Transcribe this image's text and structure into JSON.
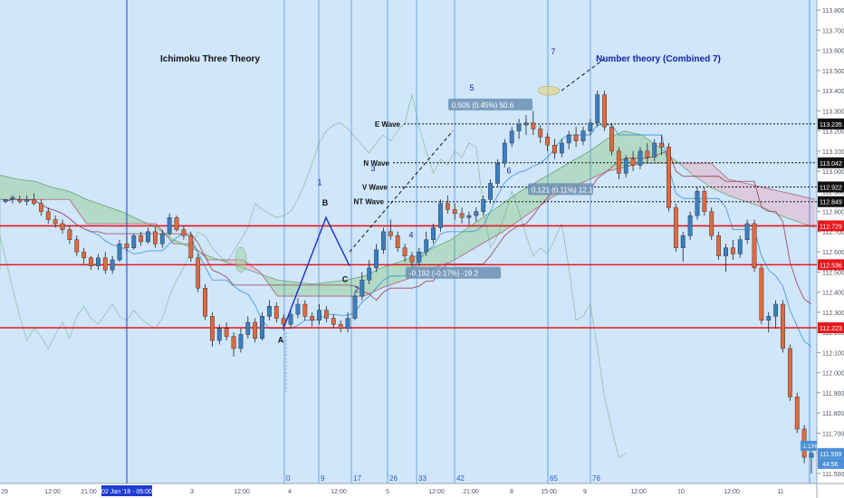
{
  "chart_data": {
    "type": "candlestick",
    "title": "Ichimoku Three Theory",
    "annotation_number_theory": "Number theory (Combined 7)",
    "y_axis": {
      "min": 111.45,
      "max": 113.85,
      "ticks": [
        113.8,
        113.7,
        113.6,
        113.5,
        113.4,
        113.3,
        113.2,
        113.1,
        113.0,
        112.9,
        112.8,
        112.7,
        112.6,
        112.5,
        112.4,
        112.3,
        112.2,
        112.1,
        112.0,
        111.9,
        111.8,
        111.7,
        111.6,
        111.5
      ],
      "tick_labels": [
        "113.800",
        "113.700",
        "113.600",
        "113.500",
        "113.400",
        "113.300",
        "113.200",
        "113.100",
        "113.000",
        "112.900",
        "112.800",
        "112.700",
        "112.600",
        "112.500",
        "112.400",
        "112.300",
        "112.200",
        "112.100",
        "112.000",
        "111.900",
        "111.800",
        "111.700",
        "111.600",
        "111.500"
      ]
    },
    "x_axis": {
      "labels": [
        "29",
        "12:00",
        "21:00",
        "02 Jan '18 - 05:00",
        "3",
        "12:00",
        "4",
        "12:00",
        "5",
        "12:00",
        "21:00",
        "8",
        "15:00",
        "9",
        "12:00",
        "10",
        "12:00",
        "11"
      ],
      "highlighted_label": "02 Jan '18 - 05:00"
    },
    "horizontal_levels": [
      {
        "value": 112.729,
        "label": "112.729",
        "color": "#e8161c"
      },
      {
        "value": 112.536,
        "label": "112.536",
        "color": "#e8161c"
      },
      {
        "value": 112.223,
        "label": "112.223",
        "color": "#e8161c"
      }
    ],
    "wave_levels": [
      {
        "name": "E Wave",
        "value": 113.235,
        "label": "113.235"
      },
      {
        "name": "N Wave",
        "value": 113.042,
        "label": "113.042"
      },
      {
        "name": "V Wave",
        "value": 112.922,
        "label": "112.922"
      },
      {
        "name": "NT Wave",
        "value": 112.849,
        "label": "112.849"
      }
    ],
    "right_price_labels": [
      {
        "value": 111.599,
        "label": "111.599",
        "time": "44:56",
        "change": "-1.13%"
      }
    ],
    "time_cycle_counts": [
      "0",
      "9",
      "17",
      "26",
      "33",
      "42",
      "65",
      "76"
    ],
    "wave_points": [
      "A",
      "B",
      "C",
      "1",
      "2",
      "3",
      "4",
      "5",
      "6",
      "7"
    ],
    "measurements": [
      {
        "text": "0.505 (0.45%) 50.6"
      },
      {
        "text": "0.121 (0.11%) 12.1"
      },
      {
        "text": "-0.192 (-0.17%) -19.2"
      }
    ],
    "candles": [
      [
        112.85,
        112.86,
        112.84,
        112.86
      ],
      [
        112.86,
        112.88,
        112.84,
        112.87
      ],
      [
        112.86,
        112.88,
        112.84,
        112.85
      ],
      [
        112.85,
        112.88,
        112.83,
        112.86
      ],
      [
        112.86,
        112.89,
        112.83,
        112.84
      ],
      [
        112.84,
        112.86,
        112.78,
        112.8
      ],
      [
        112.8,
        112.82,
        112.74,
        112.76
      ],
      [
        112.76,
        112.78,
        112.72,
        112.74
      ],
      [
        112.74,
        112.76,
        112.69,
        112.71
      ],
      [
        112.71,
        112.73,
        112.64,
        112.66
      ],
      [
        112.66,
        112.68,
        112.58,
        112.6
      ],
      [
        112.6,
        112.62,
        112.54,
        112.57
      ],
      [
        112.57,
        112.58,
        112.51,
        112.53
      ],
      [
        112.53,
        112.59,
        112.51,
        112.57
      ],
      [
        112.57,
        112.6,
        112.49,
        112.51
      ],
      [
        112.51,
        112.58,
        112.49,
        112.56
      ],
      [
        112.56,
        112.66,
        112.55,
        112.64
      ],
      [
        112.64,
        112.68,
        112.6,
        112.62
      ],
      [
        112.62,
        112.69,
        112.61,
        112.68
      ],
      [
        112.68,
        112.7,
        112.63,
        112.65
      ],
      [
        112.65,
        112.72,
        112.64,
        112.7
      ],
      [
        112.7,
        112.72,
        112.62,
        112.64
      ],
      [
        112.64,
        112.71,
        112.62,
        112.69
      ],
      [
        112.69,
        112.79,
        112.68,
        112.77
      ],
      [
        112.77,
        112.78,
        112.7,
        112.71
      ],
      [
        112.71,
        112.73,
        112.66,
        112.68
      ],
      [
        112.68,
        112.7,
        112.55,
        112.57
      ],
      [
        112.57,
        112.59,
        112.4,
        112.42
      ],
      [
        112.42,
        112.44,
        112.26,
        112.28
      ],
      [
        112.28,
        112.3,
        112.13,
        112.16
      ],
      [
        112.16,
        112.24,
        112.14,
        112.22
      ],
      [
        112.22,
        112.25,
        112.16,
        112.18
      ],
      [
        112.18,
        112.2,
        112.08,
        112.12
      ],
      [
        112.12,
        112.22,
        112.1,
        112.19
      ],
      [
        112.19,
        112.28,
        112.17,
        112.25
      ],
      [
        112.25,
        112.27,
        112.15,
        112.17
      ],
      [
        112.17,
        112.3,
        112.16,
        112.28
      ],
      [
        112.28,
        112.36,
        112.26,
        112.33
      ],
      [
        112.33,
        112.35,
        112.25,
        112.27
      ],
      [
        112.27,
        112.29,
        112.21,
        112.24
      ],
      [
        112.24,
        112.32,
        112.22,
        112.29
      ],
      [
        112.29,
        112.37,
        112.27,
        112.34
      ],
      [
        112.34,
        112.36,
        112.26,
        112.28
      ],
      [
        112.28,
        112.3,
        112.23,
        112.26
      ],
      [
        112.26,
        112.34,
        112.24,
        112.31
      ],
      [
        112.31,
        112.33,
        112.25,
        112.27
      ],
      [
        112.27,
        112.29,
        112.22,
        112.24
      ],
      [
        112.24,
        112.26,
        112.2,
        112.22
      ],
      [
        112.22,
        112.3,
        112.2,
        112.27
      ],
      [
        112.27,
        112.4,
        112.26,
        112.38
      ],
      [
        112.38,
        112.5,
        112.36,
        112.46
      ],
      [
        112.46,
        112.56,
        112.44,
        112.52
      ],
      [
        112.52,
        112.64,
        112.5,
        112.61
      ],
      [
        112.61,
        112.72,
        112.59,
        112.7
      ],
      [
        112.7,
        112.76,
        112.66,
        112.68
      ],
      [
        112.68,
        112.7,
        112.6,
        112.62
      ],
      [
        112.62,
        112.64,
        112.55,
        112.58
      ],
      [
        112.58,
        112.6,
        112.52,
        112.55
      ],
      [
        112.55,
        112.62,
        112.53,
        112.6
      ],
      [
        112.6,
        112.7,
        112.58,
        112.66
      ],
      [
        112.66,
        112.74,
        112.64,
        112.72
      ],
      [
        112.72,
        112.86,
        112.7,
        112.84
      ],
      [
        112.84,
        112.88,
        112.79,
        112.81
      ],
      [
        112.81,
        112.84,
        112.76,
        112.79
      ],
      [
        112.79,
        112.82,
        112.74,
        112.77
      ],
      [
        112.77,
        112.8,
        112.73,
        112.78
      ],
      [
        112.78,
        112.82,
        112.75,
        112.8
      ],
      [
        112.8,
        112.88,
        112.78,
        112.86
      ],
      [
        112.86,
        112.96,
        112.84,
        112.94
      ],
      [
        112.94,
        113.06,
        112.92,
        113.04
      ],
      [
        113.04,
        113.16,
        113.02,
        113.14
      ],
      [
        113.14,
        113.22,
        113.12,
        113.2
      ],
      [
        113.2,
        113.26,
        113.16,
        113.23
      ],
      [
        113.23,
        113.28,
        113.18,
        113.24
      ],
      [
        113.24,
        113.3,
        113.18,
        113.21
      ],
      [
        113.21,
        113.23,
        113.14,
        113.17
      ],
      [
        113.17,
        113.19,
        113.1,
        113.13
      ],
      [
        113.13,
        113.16,
        113.06,
        113.09
      ],
      [
        113.09,
        113.16,
        113.07,
        113.14
      ],
      [
        113.14,
        113.2,
        113.11,
        113.18
      ],
      [
        113.18,
        113.22,
        113.12,
        113.15
      ],
      [
        113.15,
        113.22,
        113.13,
        113.2
      ],
      [
        113.2,
        113.26,
        113.18,
        113.24
      ],
      [
        113.24,
        113.4,
        113.22,
        113.38
      ],
      [
        113.38,
        113.4,
        113.2,
        113.22
      ],
      [
        113.22,
        113.24,
        113.08,
        113.1
      ],
      [
        113.1,
        113.12,
        112.96,
        112.99
      ],
      [
        112.99,
        113.08,
        112.97,
        113.06
      ],
      [
        113.06,
        113.1,
        113.0,
        113.03
      ],
      [
        113.03,
        113.12,
        113.01,
        113.1
      ],
      [
        113.1,
        113.14,
        113.04,
        113.07
      ],
      [
        113.07,
        113.16,
        113.05,
        113.14
      ],
      [
        113.14,
        113.18,
        113.08,
        113.12
      ],
      [
        113.12,
        113.14,
        112.8,
        112.82
      ],
      [
        112.82,
        112.84,
        112.6,
        112.62
      ],
      [
        112.62,
        112.7,
        112.55,
        112.68
      ],
      [
        112.68,
        112.8,
        112.66,
        112.78
      ],
      [
        112.78,
        112.92,
        112.76,
        112.9
      ],
      [
        112.9,
        112.92,
        112.78,
        112.8
      ],
      [
        112.8,
        112.82,
        112.66,
        112.68
      ],
      [
        112.68,
        112.7,
        112.56,
        112.58
      ],
      [
        112.58,
        112.64,
        112.5,
        112.62
      ],
      [
        112.62,
        112.66,
        112.56,
        112.59
      ],
      [
        112.59,
        112.68,
        112.57,
        112.66
      ],
      [
        112.66,
        112.76,
        112.64,
        112.74
      ],
      [
        112.74,
        112.76,
        112.5,
        112.52
      ],
      [
        112.52,
        112.54,
        112.24,
        112.26
      ],
      [
        112.26,
        112.3,
        112.2,
        112.28
      ],
      [
        112.28,
        112.36,
        112.22,
        112.34
      ],
      [
        112.34,
        112.36,
        112.1,
        112.12
      ],
      [
        112.12,
        112.14,
        111.86,
        111.88
      ],
      [
        111.88,
        111.9,
        111.7,
        111.72
      ],
      [
        111.72,
        111.74,
        111.55,
        111.58
      ],
      [
        111.58,
        111.62,
        111.5,
        111.6
      ]
    ]
  },
  "ichimoku": {
    "span_a": [
      112.98,
      112.96,
      112.95,
      112.92,
      112.9,
      112.86,
      112.83,
      112.8,
      112.76,
      112.72,
      112.66,
      112.62,
      112.58,
      112.55,
      112.52,
      112.49,
      112.46,
      112.45,
      112.44,
      112.45,
      112.46,
      112.48,
      112.52,
      112.55,
      112.58,
      112.62,
      112.66,
      112.72,
      112.78,
      112.84,
      112.9,
      112.95,
      113.0,
      113.05,
      113.1,
      113.16,
      113.2,
      113.18,
      113.12,
      113.05,
      112.98,
      112.92,
      112.88,
      112.85,
      112.82,
      112.78,
      112.75,
      112.72
    ],
    "span_b": [
      112.86,
      112.86,
      112.86,
      112.86,
      112.86,
      112.74,
      112.74,
      112.74,
      112.74,
      112.74,
      112.64,
      112.64,
      112.56,
      112.56,
      112.56,
      112.5,
      112.38,
      112.38,
      112.38,
      112.38,
      112.38,
      112.38,
      112.42,
      112.45,
      112.48,
      112.52,
      112.55,
      112.6,
      112.65,
      112.7,
      112.76,
      112.82,
      112.88,
      112.92,
      112.96,
      113.0,
      113.02,
      113.04,
      113.04,
      113.04,
      113.04,
      113.04,
      112.96,
      112.94,
      112.92,
      112.9,
      112.88,
      112.86
    ]
  },
  "colors": {
    "background": "#cfe6fb",
    "up_candle": "#3a7fc0",
    "down_candle": "#e1693f",
    "horizontal_level": "#e8161c",
    "cycle_line": "#2a6fd1",
    "date_marker": "#1f3bd4",
    "cloud_bull": "#9bcf9b",
    "cloud_bear": "#e8b3c9",
    "label_blue": "#1625a8"
  }
}
